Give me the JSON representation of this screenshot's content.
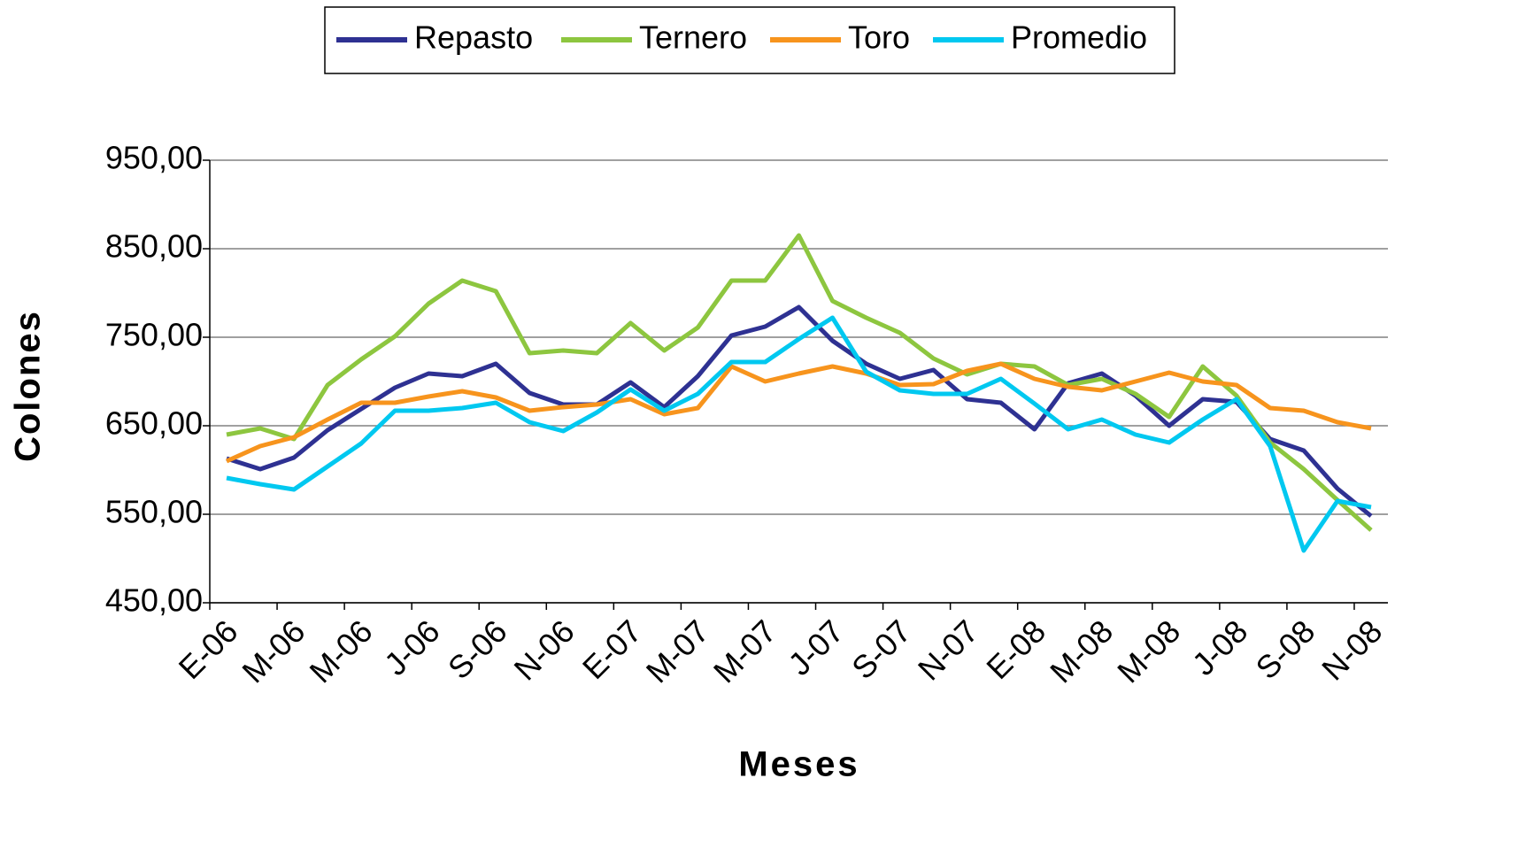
{
  "chart_data": {
    "type": "line",
    "xlabel": "Meses",
    "ylabel": "Colones",
    "categories": [
      "E-06",
      null,
      "M-06",
      null,
      "M-06",
      null,
      "J-06",
      null,
      "S-06",
      null,
      "N-06",
      null,
      "E-07",
      null,
      "M-07",
      null,
      "M-07",
      null,
      "J-07",
      null,
      "S-07",
      null,
      "N-07",
      null,
      "E-08",
      null,
      "M-08",
      null,
      "M-08",
      null,
      "J-08",
      null,
      "S-08",
      null,
      "N-08"
    ],
    "series": [
      {
        "name": "Repasto",
        "color": "#2e3192",
        "values": [
          613,
          601,
          614,
          645,
          669,
          693,
          709,
          706,
          720,
          687,
          674,
          674,
          699,
          671,
          706,
          752,
          762,
          784,
          746,
          720,
          703,
          713,
          680,
          676,
          646,
          698,
          709,
          684,
          650,
          680,
          677,
          635,
          622,
          579,
          548
        ]
      },
      {
        "name": "Ternero",
        "color": "#8dc63f",
        "values": [
          640,
          647,
          635,
          696,
          725,
          751,
          788,
          814,
          802,
          732,
          735,
          732,
          766,
          735,
          761,
          814,
          814,
          865,
          791,
          772,
          755,
          726,
          708,
          720,
          717,
          696,
          703,
          686,
          660,
          717,
          684,
          631,
          601,
          566,
          532
        ]
      },
      {
        "name": "Toro",
        "color": "#f7941d",
        "values": [
          610,
          627,
          637,
          657,
          676,
          676,
          683,
          689,
          682,
          667,
          671,
          674,
          680,
          663,
          670,
          717,
          700,
          709,
          717,
          709,
          696,
          697,
          712,
          720,
          703,
          694,
          690,
          700,
          710,
          700,
          696,
          670,
          667,
          654,
          647
        ]
      },
      {
        "name": "Promedio",
        "color": "#00c8f0",
        "values": [
          591,
          584,
          578,
          604,
          630,
          667,
          667,
          670,
          676,
          654,
          644,
          665,
          691,
          667,
          686,
          722,
          722,
          748,
          772,
          711,
          690,
          686,
          686,
          703,
          675,
          646,
          657,
          640,
          631,
          657,
          680,
          627,
          509,
          565,
          558
        ]
      }
    ],
    "ylim": [
      450,
      950
    ],
    "yticks": [
      {
        "value": 450,
        "label": "450,00"
      },
      {
        "value": 550,
        "label": "550,00"
      },
      {
        "value": 650,
        "label": "650,00"
      },
      {
        "value": 750,
        "label": "750,00"
      },
      {
        "value": 850,
        "label": "850,00"
      },
      {
        "value": 950,
        "label": "950,00"
      }
    ],
    "grid": true,
    "legend": "top"
  }
}
